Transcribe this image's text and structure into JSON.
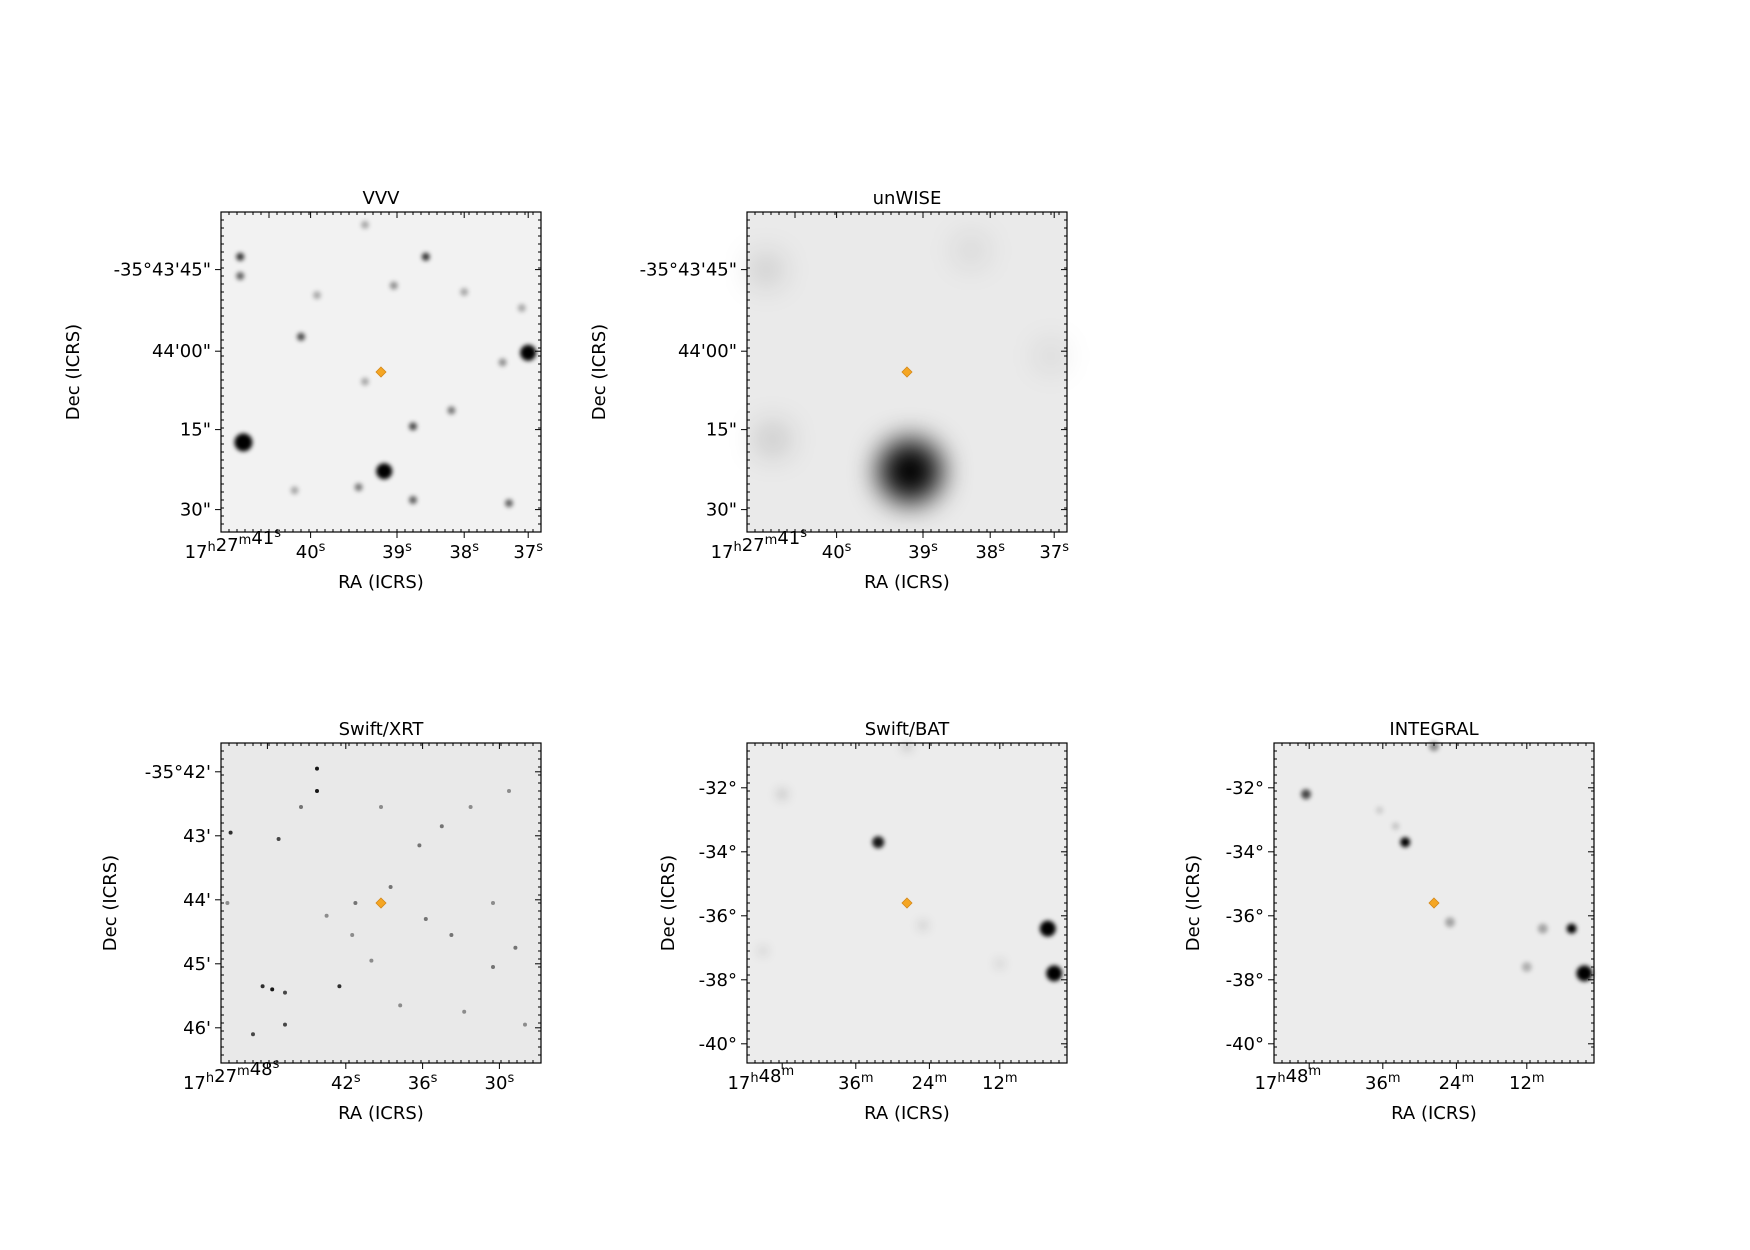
{
  "panels": [
    {
      "title": "VVV",
      "xlabel": "RA (ICRS)",
      "ylabel": "Dec (ICRS)",
      "xticks": [
        "17h27m41s",
        "40s",
        "39s",
        "38s",
        "37s"
      ],
      "yticks": [
        "-35°43'45\"",
        "44'00\"",
        "15\"",
        "30\""
      ]
    },
    {
      "title": "unWISE",
      "xlabel": "RA (ICRS)",
      "ylabel": "Dec (ICRS)",
      "xticks": [
        "17h27m41s",
        "40s",
        "39s",
        "38s",
        "37s"
      ],
      "yticks": [
        "-35°43'45\"",
        "44'00\"",
        "15\"",
        "30\""
      ]
    },
    {
      "title": "Swift/XRT",
      "xlabel": "RA (ICRS)",
      "ylabel": "Dec (ICRS)",
      "xticks": [
        "17h27m48s",
        "42s",
        "36s",
        "30s"
      ],
      "yticks": [
        "-35°42'",
        "43'",
        "44'",
        "45'",
        "46'"
      ]
    },
    {
      "title": "Swift/BAT",
      "xlabel": "RA (ICRS)",
      "ylabel": "Dec (ICRS)",
      "xticks": [
        "17h48m",
        "36m",
        "24m",
        "12m"
      ],
      "yticks": [
        "-32°",
        "-34°",
        "-36°",
        "-38°",
        "-40°"
      ]
    },
    {
      "title": "INTEGRAL",
      "xlabel": "RA (ICRS)",
      "ylabel": "Dec (ICRS)",
      "xticks": [
        "17h48m",
        "36m",
        "24m",
        "12m"
      ],
      "yticks": [
        "-32°",
        "-34°",
        "-36°",
        "-38°",
        "-40°"
      ]
    }
  ]
}
